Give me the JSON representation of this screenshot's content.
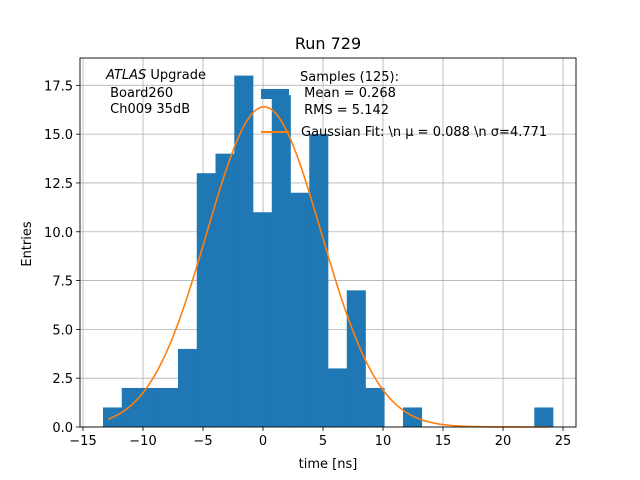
{
  "chart_data": {
    "type": "bar",
    "title": "Run 729",
    "xlabel": "time [ns]",
    "ylabel": "Entries",
    "xlim": [
      -15.25,
      26.08
    ],
    "ylim": [
      0,
      18.9
    ],
    "grid": true,
    "xticks": [
      -15,
      -10,
      -5,
      0,
      5,
      10,
      15,
      20,
      25
    ],
    "xtick_labels": [
      "−15",
      "−10",
      "−5",
      "0",
      "5",
      "10",
      "15",
      "20",
      "25"
    ],
    "yticks": [
      0,
      2.5,
      5,
      7.5,
      10,
      12.5,
      15,
      17.5
    ],
    "ytick_labels": [
      "0.0",
      "2.5",
      "5.0",
      "7.5",
      "10.0",
      "12.5",
      "15.0",
      "17.5"
    ],
    "histogram": {
      "bin_start": -13.333,
      "bin_width": 1.5625,
      "counts": [
        1,
        2,
        2,
        2,
        4,
        13,
        14,
        18,
        11,
        17,
        12,
        15,
        3,
        7,
        2,
        0,
        1,
        0,
        0,
        0,
        0,
        0,
        0,
        1
      ],
      "color": "#1f77b4"
    },
    "fit": {
      "type": "gaussian",
      "amplitude": 16.4,
      "mu": 0.088,
      "sigma": 4.771,
      "x_range": [
        -12.9,
        23.8
      ],
      "color": "#ff7f0e"
    },
    "legend": {
      "placement": "top-center",
      "entries": [
        {
          "lines": [
            "Samples (125):",
            " Mean = 0.268",
            " RMS = 5.142"
          ]
        },
        {
          "lines": [
            "Gaussian Fit: \\n μ = 0.088 \\n σ=4.771"
          ]
        }
      ]
    },
    "annotation": {
      "atlas": "ATLAS",
      "rest": " Upgrade",
      "line2": " Board260",
      "line3": " Ch009 35dB"
    }
  }
}
